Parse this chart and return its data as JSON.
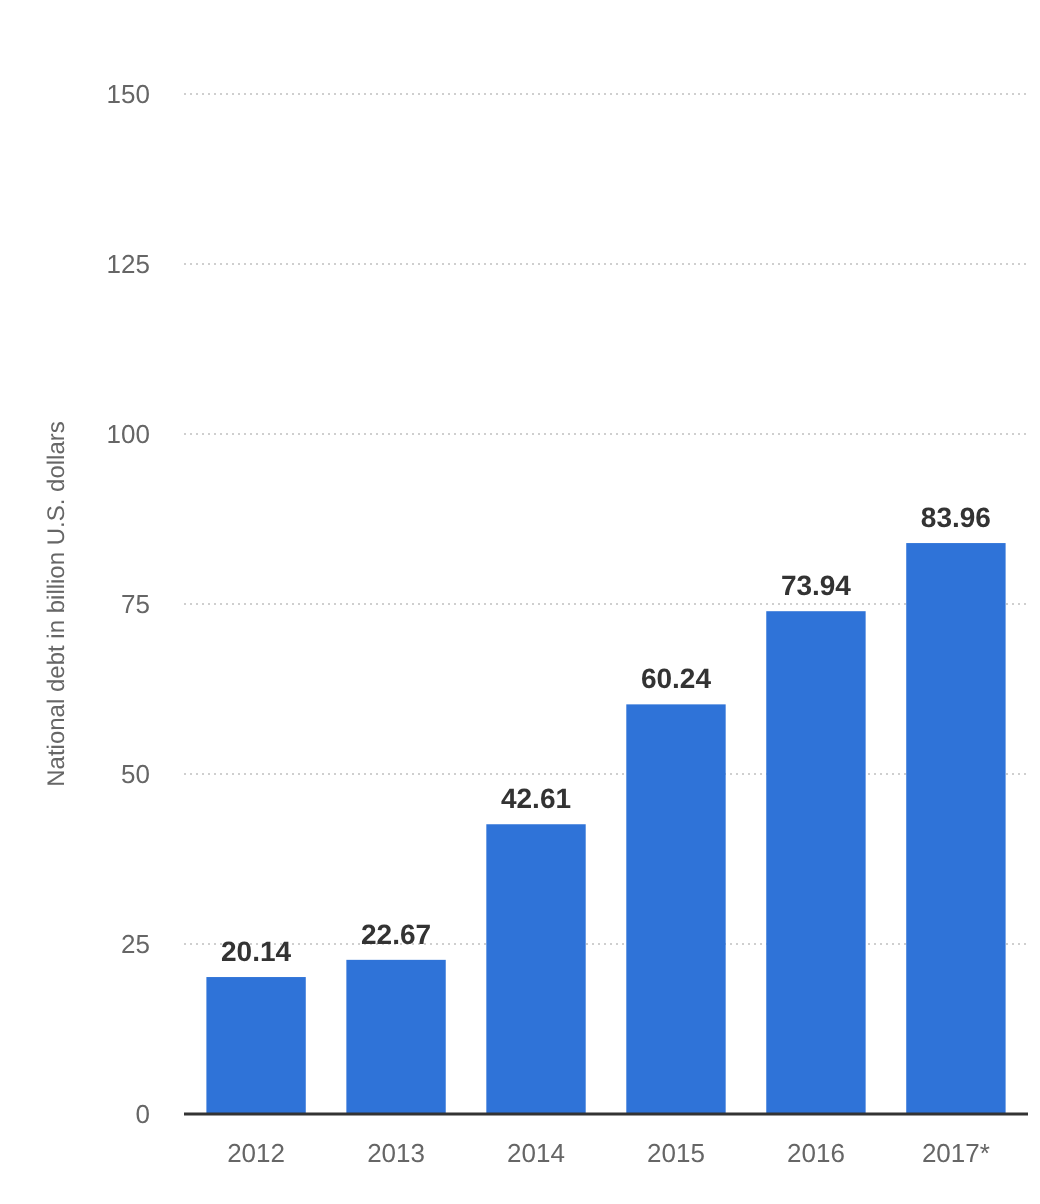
{
  "chart_data": {
    "type": "bar",
    "ylabel": "National debt in billion U.S. dollars",
    "categories": [
      "2012",
      "2013",
      "2014",
      "2015",
      "2016",
      "2017*"
    ],
    "values": [
      20.14,
      22.67,
      42.61,
      60.24,
      73.94,
      83.96
    ],
    "color": "#2f73d8",
    "ylim": [
      0,
      150
    ],
    "yticks": [
      0,
      25,
      50,
      75,
      100,
      125,
      150
    ],
    "grid": "y",
    "data_labels": true
  }
}
